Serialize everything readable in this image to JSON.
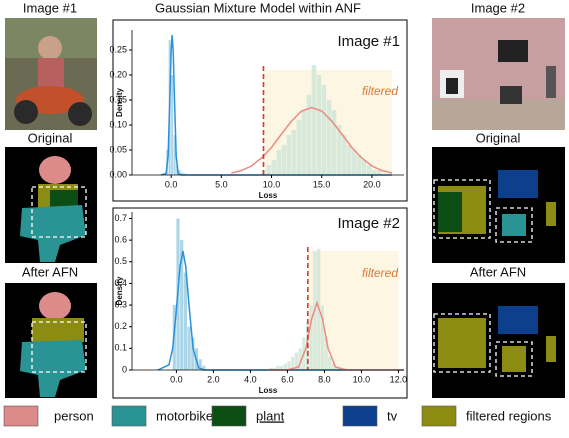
{
  "title": "Gaussian Mixture Model within ANF",
  "left": {
    "image_label": "Image #1",
    "original": "Original",
    "after": "After AFN"
  },
  "right": {
    "image_label": "Image #2",
    "original": "Original",
    "after": "After AFN"
  },
  "legend": [
    {
      "name": "person",
      "color": "#dc8a8a"
    },
    {
      "name": "motorbike",
      "color": "#2a9393"
    },
    {
      "name": "plant",
      "color": "#0b4d12"
    },
    {
      "name": "tv",
      "color": "#0d3f8c"
    },
    {
      "name": "filtered regions",
      "color": "#8c8c12"
    }
  ],
  "chart_data": [
    {
      "type": "histogram",
      "title": "Image #1",
      "annotation": "filtered",
      "x_label": "Loss",
      "y_label": "Density",
      "xlim": [
        -3.9,
        23.2
      ],
      "ylim": [
        0,
        0.29
      ],
      "xticks": [
        {
          "value": 0,
          "label": "0.0"
        },
        {
          "value": 5,
          "label": "5.0"
        },
        {
          "value": 10,
          "label": "10.0"
        },
        {
          "value": 15,
          "label": "15.0"
        },
        {
          "value": 20,
          "label": "20.0"
        }
      ],
      "yticks": [
        {
          "value": 0,
          "label": "0.00"
        },
        {
          "value": 0.05,
          "label": "0.05"
        },
        {
          "value": 0.1,
          "label": "0.10"
        },
        {
          "value": 0.15,
          "label": "0.15"
        },
        {
          "value": 0.2,
          "label": "0.20"
        },
        {
          "value": 0.25,
          "label": "0.25"
        }
      ],
      "threshold": 9.2,
      "threshold_color": "#e0332b",
      "filtered_region": {
        "x": [
          9.2,
          22
        ],
        "y_max": 0.21,
        "color": "#fdf6e3"
      },
      "histograms": [
        {
          "color": "#9ccfe4",
          "bins": [
            -0.5,
            -0.25,
            0,
            0.25,
            0.5,
            0.75,
            1,
            1.25,
            1.5
          ],
          "counts": [
            0.05,
            0.27,
            0.2,
            0.08,
            0.02,
            0.01,
            0.005,
            0.003
          ]
        },
        {
          "color": "#cfe6d8",
          "bins": [
            9,
            9.5,
            10,
            10.5,
            11,
            11.5,
            12,
            12.5,
            13,
            13.5,
            14,
            14.5,
            15,
            15.5,
            16,
            16.5,
            17,
            17.5,
            18,
            18.5,
            19,
            19.5,
            20,
            20.5,
            21
          ],
          "counts": [
            0.01,
            0.02,
            0.03,
            0.05,
            0.06,
            0.08,
            0.09,
            0.11,
            0.13,
            0.16,
            0.22,
            0.2,
            0.18,
            0.15,
            0.13,
            0.1,
            0.08,
            0.06,
            0.05,
            0.04,
            0.03,
            0.02,
            0.01,
            0.01
          ]
        }
      ],
      "curves": [
        {
          "color": "#2b8fd8",
          "x": [
            -1,
            -0.5,
            -0.3,
            -0.1,
            0,
            0.1,
            0.2,
            0.3,
            0.5,
            0.7,
            1,
            2,
            22
          ],
          "values": [
            0,
            0.003,
            0.038,
            0.17,
            0.247,
            0.28,
            0.247,
            0.17,
            0.038,
            0.003,
            0,
            0,
            0
          ]
        },
        {
          "color": "#ec8a80",
          "x": [
            6,
            7,
            8,
            9,
            10,
            11,
            12,
            13,
            14,
            15,
            16,
            17,
            18,
            19,
            20,
            21,
            22
          ],
          "values": [
            0.004,
            0.009,
            0.018,
            0.034,
            0.055,
            0.082,
            0.108,
            0.128,
            0.135,
            0.128,
            0.108,
            0.082,
            0.055,
            0.034,
            0.018,
            0.009,
            0.004
          ]
        }
      ]
    },
    {
      "type": "histogram",
      "title": "Image #2",
      "annotation": "filtered",
      "x_label": "Loss",
      "y_label": "Density",
      "xlim": [
        -2.4,
        12.3
      ],
      "ylim": [
        0,
        0.73
      ],
      "xticks": [
        {
          "value": 0,
          "label": "0.0"
        },
        {
          "value": 2,
          "label": "2.0"
        },
        {
          "value": 4,
          "label": "4.0"
        },
        {
          "value": 6,
          "label": "6.0"
        },
        {
          "value": 8,
          "label": "8.0"
        },
        {
          "value": 10,
          "label": "10.0"
        },
        {
          "value": 12,
          "label": "12.0"
        }
      ],
      "yticks": [
        0,
        0.1,
        0.2,
        0.3,
        0.4,
        0.5,
        0.6,
        0.7
      ],
      "threshold": 7.1,
      "threshold_color": "#e0332b",
      "filtered_region": {
        "x": [
          7.1,
          12
        ],
        "y_max": 0.55,
        "color": "#fdf6e3"
      },
      "histograms": [
        {
          "color": "#9ccfe4",
          "bins": [
            -0.2,
            0,
            0.2,
            0.4,
            0.6,
            0.8,
            1,
            1.2,
            1.4,
            1.6
          ],
          "counts": [
            0.3,
            0.7,
            0.6,
            0.45,
            0.2,
            0.15,
            0.1,
            0.05,
            0.02
          ]
        },
        {
          "color": "#cfe6d8",
          "bins": [
            5,
            5.2,
            5.4,
            5.6,
            5.8,
            6,
            6.2,
            6.4,
            6.6,
            6.8,
            7,
            7.2,
            7.4,
            7.6,
            7.8,
            8,
            8.2,
            8.4,
            8.6,
            8.8,
            9
          ],
          "counts": [
            0.01,
            0.01,
            0.02,
            0.02,
            0.03,
            0.04,
            0.06,
            0.08,
            0.1,
            0.15,
            0.22,
            0.3,
            0.55,
            0.56,
            0.3,
            0.15,
            0.06,
            0.03,
            0.01,
            0.01
          ]
        }
      ],
      "curves": [
        {
          "color": "#2b8fd8",
          "x": [
            -1,
            -0.4,
            -0.2,
            0,
            0.2,
            0.35,
            0.5,
            0.7,
            0.9,
            1.2,
            1.5,
            12.3
          ],
          "values": [
            0,
            0.024,
            0.1,
            0.28,
            0.48,
            0.55,
            0.48,
            0.28,
            0.1,
            0.01,
            0,
            0
          ]
        },
        {
          "color": "#ec8a80",
          "x": [
            5,
            6,
            6.6,
            7,
            7.3,
            7.6,
            7.9,
            8.2,
            8.6,
            9.2,
            10,
            12.3
          ],
          "values": [
            0,
            0,
            0.014,
            0.1,
            0.234,
            0.31,
            0.234,
            0.1,
            0.014,
            0,
            0,
            0
          ]
        }
      ]
    }
  ]
}
